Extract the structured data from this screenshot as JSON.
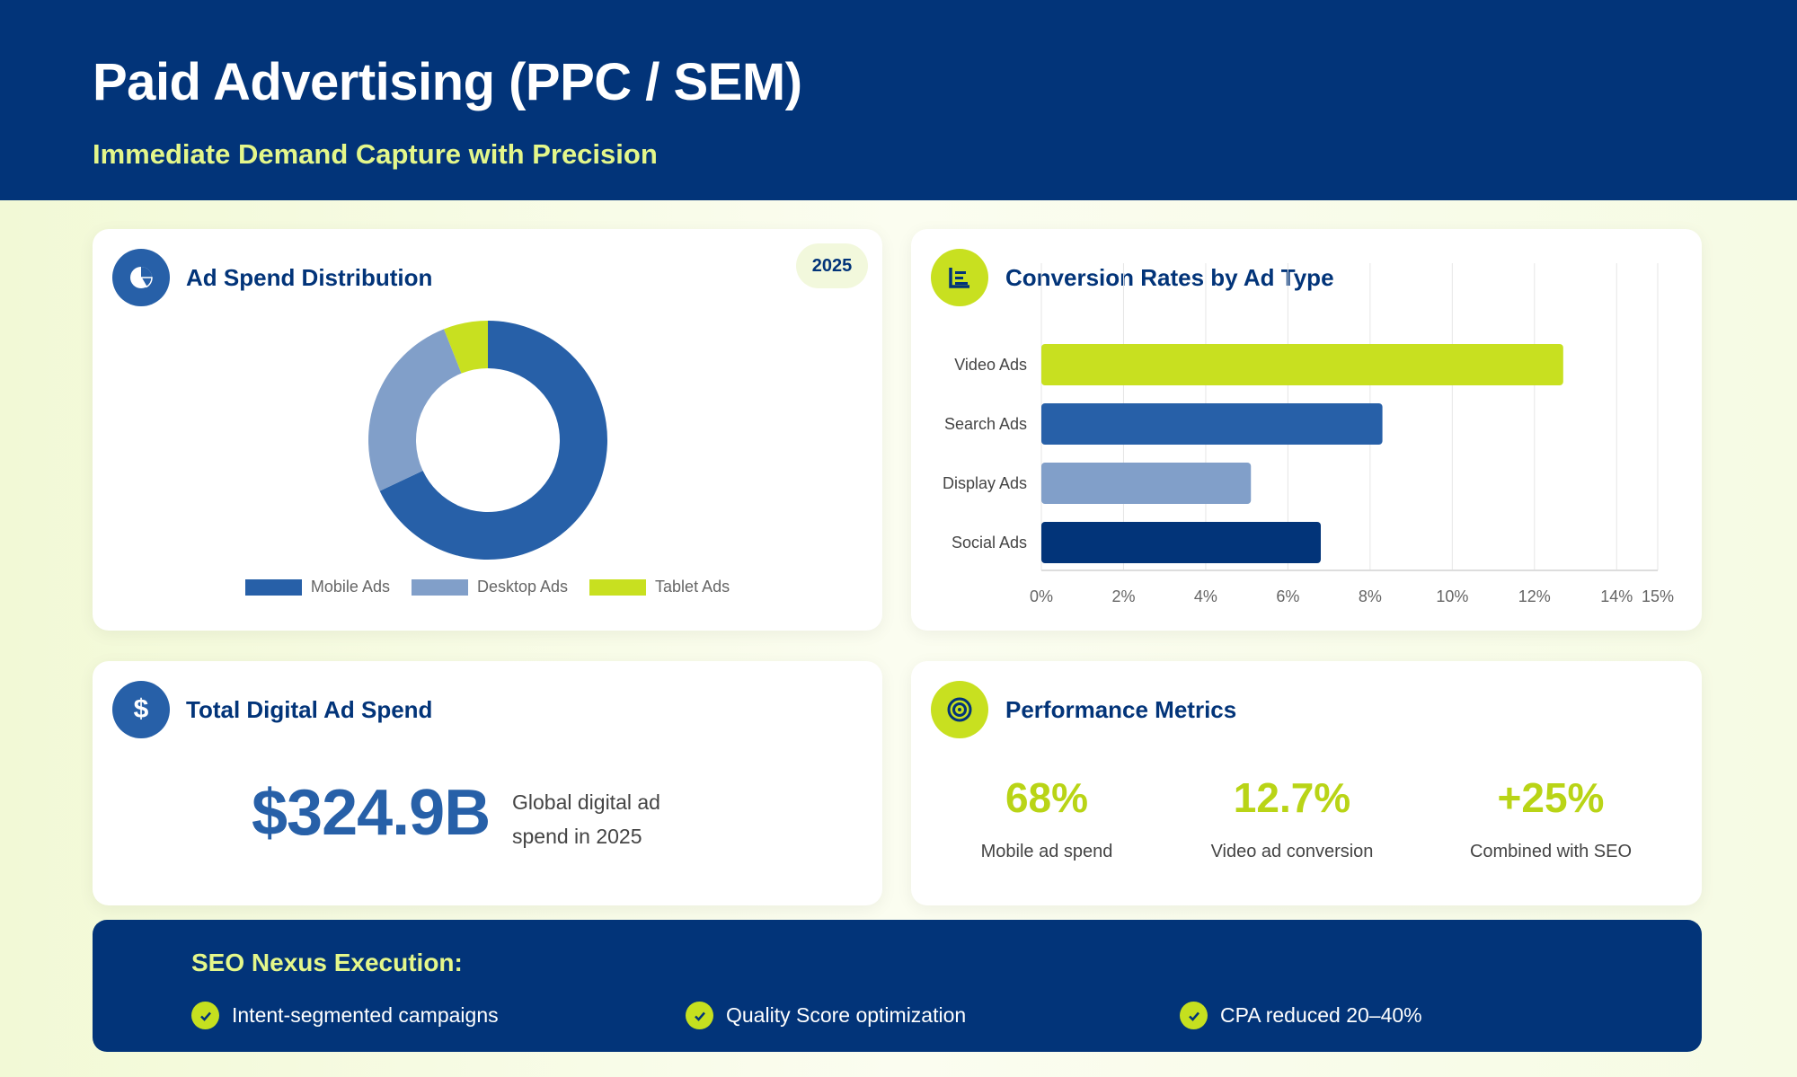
{
  "header": {
    "title": "Paid Advertising (PPC / SEM)",
    "subtitle": "Immediate Demand Capture with Precision"
  },
  "colors": {
    "navy": "#023479",
    "blue": "#2760a8",
    "light_blue": "#819fc9",
    "lime": "#c8e020",
    "subtitle": "#e4f78a"
  },
  "ad_spend": {
    "title": "Ad Spend Distribution",
    "badge": "2025",
    "icon": "pie-chart-icon"
  },
  "conversion": {
    "title": "Conversion Rates by Ad Type",
    "icon": "bar-chart-icon"
  },
  "total": {
    "title": "Total Digital Ad Spend",
    "icon": "dollar-icon",
    "value": "$324.9B",
    "description": "Global digital ad spend in 2025"
  },
  "performance": {
    "title": "Performance Metrics",
    "icon": "target-icon",
    "metrics": [
      {
        "value": "68%",
        "label": "Mobile ad spend"
      },
      {
        "value": "12.7%",
        "label": "Video ad conversion"
      },
      {
        "value": "+25%",
        "label": "Combined with SEO"
      }
    ]
  },
  "execution": {
    "heading": "SEO Nexus Execution:",
    "items": [
      "Intent-segmented campaigns",
      "Quality Score optimization",
      "CPA reduced 20–40%"
    ]
  },
  "chart_data": [
    {
      "type": "pie",
      "variant": "donut",
      "categories": [
        "Mobile Ads",
        "Desktop Ads",
        "Tablet Ads"
      ],
      "values": [
        68,
        26,
        6
      ],
      "colors": [
        "#2760a8",
        "#819fc9",
        "#c8e020"
      ],
      "legend": "bottom"
    },
    {
      "type": "bar",
      "orientation": "horizontal",
      "categories": [
        "Video Ads",
        "Search Ads",
        "Display Ads",
        "Social Ads"
      ],
      "values": [
        12.7,
        8.3,
        5.1,
        6.8
      ],
      "colors": [
        "#c8e020",
        "#2760a8",
        "#819fc9",
        "#023479"
      ],
      "xlim": [
        0,
        15
      ],
      "xticks": [
        "0%",
        "2%",
        "4%",
        "6%",
        "8%",
        "10%",
        "12%",
        "14%",
        "15%"
      ],
      "xtick_values": [
        0,
        2,
        4,
        6,
        8,
        10,
        12,
        14,
        15
      ],
      "grid": true
    }
  ]
}
